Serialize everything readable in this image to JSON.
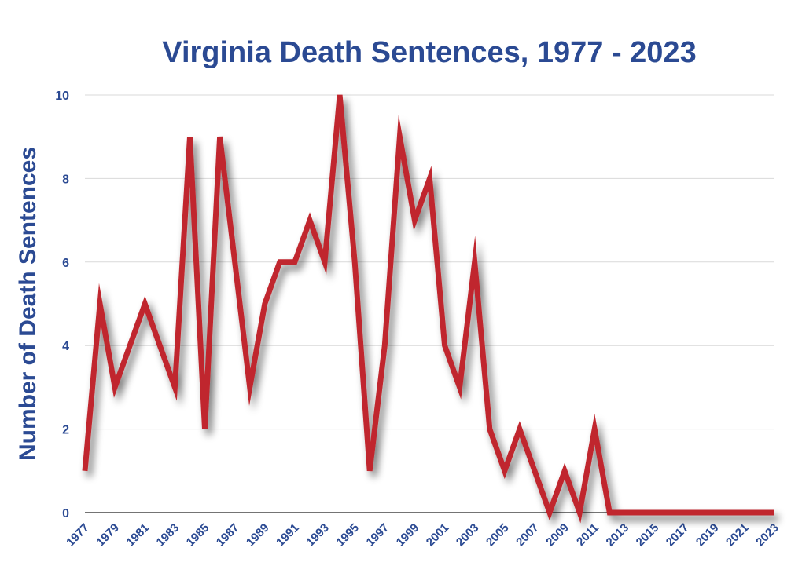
{
  "colors": {
    "title": "#2b4a93",
    "line": "#c0272d",
    "grid": "#d9d9d9"
  },
  "chart_data": {
    "type": "line",
    "title": "Virginia Death Sentences, 1977 - 2023",
    "xlabel": "",
    "ylabel": "Number of Death Sentences",
    "ylim": [
      0,
      10
    ],
    "yticks": [
      0,
      2,
      4,
      6,
      8,
      10
    ],
    "grid": true,
    "x_tick_labels": [
      "1977",
      "1979",
      "1981",
      "1983",
      "1985",
      "1987",
      "1989",
      "1991",
      "1993",
      "1995",
      "1997",
      "1999",
      "2001",
      "2003",
      "2005",
      "2007",
      "2009",
      "2011",
      "2013",
      "2015",
      "2017",
      "2019",
      "2021",
      "2023"
    ],
    "x": [
      1977,
      1978,
      1979,
      1980,
      1981,
      1982,
      1983,
      1984,
      1985,
      1986,
      1987,
      1988,
      1989,
      1990,
      1991,
      1992,
      1993,
      1994,
      1995,
      1996,
      1997,
      1998,
      1999,
      2000,
      2001,
      2002,
      2003,
      2004,
      2005,
      2006,
      2007,
      2008,
      2009,
      2010,
      2011,
      2012,
      2013,
      2014,
      2015,
      2016,
      2017,
      2018,
      2019,
      2020,
      2021,
      2022,
      2023
    ],
    "series": [
      {
        "values": [
          1,
          5,
          3,
          4,
          5,
          4,
          3,
          9,
          2,
          9,
          6,
          3,
          5,
          6,
          6,
          7,
          6,
          10,
          6,
          1,
          4,
          9,
          7,
          8,
          4,
          3,
          6,
          2,
          1,
          2,
          1,
          0,
          1,
          0,
          2,
          0,
          0,
          0,
          0,
          0,
          0,
          0,
          0,
          0,
          0,
          0,
          0
        ]
      }
    ]
  }
}
